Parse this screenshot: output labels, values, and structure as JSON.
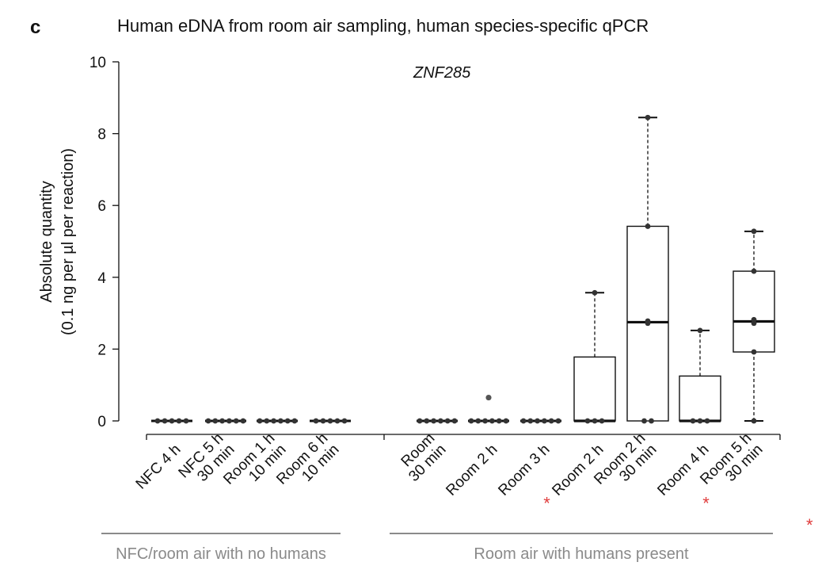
{
  "panel_letter": "c",
  "colors": {
    "ink": "#111111",
    "group_line": "#8a8a8a",
    "star": "#e03c3c"
  },
  "chart_data": {
    "type": "box",
    "title": "Human eDNA from room air sampling, human species-specific qPCR",
    "subtitle": "ZNF285",
    "ylabel_line1": "Absolute quantity",
    "ylabel_line2": "(0.1 ng per µl per reaction)",
    "ylim": [
      0,
      10
    ],
    "yticks": [
      0,
      2,
      4,
      6,
      8,
      10
    ],
    "legend_marker": "*",
    "categories": [
      {
        "lines": [
          "NFC 4 h"
        ],
        "starred": false,
        "box": null,
        "points": [
          0,
          0,
          0,
          0,
          0
        ]
      },
      {
        "lines": [
          "NFC 5 h",
          "30 min"
        ],
        "starred": false,
        "box": null,
        "points": [
          0,
          0,
          0,
          0,
          0,
          0
        ]
      },
      {
        "lines": [
          "Room 1 h",
          "10 min"
        ],
        "starred": false,
        "box": null,
        "points": [
          0,
          0,
          0,
          0,
          0,
          0
        ]
      },
      {
        "lines": [
          "Room 6 h",
          "10 min"
        ],
        "starred": false,
        "box": null,
        "points": [
          0,
          0,
          0,
          0,
          0
        ]
      },
      {
        "lines": [
          "Room",
          "30 min"
        ],
        "starred": false,
        "box": null,
        "points": [
          0,
          0,
          0,
          0,
          0,
          0
        ]
      },
      {
        "lines": [
          "Room 2 h"
        ],
        "starred": false,
        "box": null,
        "points": [
          0,
          0,
          0,
          0,
          0,
          0
        ],
        "outliers": [
          0.65
        ]
      },
      {
        "lines": [
          "Room 3 h"
        ],
        "starred": false,
        "box": null,
        "points": [
          0,
          0,
          0,
          0,
          0,
          0
        ]
      },
      {
        "lines": [
          "Room 2 h"
        ],
        "starred": true,
        "box": {
          "min": 0,
          "q1": 0,
          "median": 0,
          "q3": 1.78,
          "max": 3.57
        },
        "points": [
          0,
          0,
          0,
          3.57
        ]
      },
      {
        "lines": [
          "Room 2 h",
          "30 min"
        ],
        "starred": false,
        "box": {
          "min": 0,
          "q1": 0,
          "median": 2.75,
          "q3": 5.42,
          "max": 8.45
        },
        "points": [
          0,
          0,
          2.72,
          2.78,
          5.42,
          8.45
        ]
      },
      {
        "lines": [
          "Room 4 h"
        ],
        "starred": false,
        "box": {
          "min": 0,
          "q1": 0,
          "median": 0,
          "q3": 1.25,
          "max": 2.52
        },
        "points": [
          0,
          0,
          0,
          2.52
        ]
      },
      {
        "lines": [
          "Room 5 h",
          "30 min"
        ],
        "starred": true,
        "box": {
          "min": 0,
          "q1": 1.92,
          "median": 2.77,
          "q3": 4.17,
          "max": 5.28
        },
        "points": [
          0,
          1.92,
          2.72,
          2.82,
          4.17,
          5.28
        ]
      }
    ],
    "groups": [
      {
        "label": "NFC/room air with no humans",
        "from": 0,
        "to": 3
      },
      {
        "label": "Room air with humans present",
        "from": 4,
        "to": 10
      }
    ]
  }
}
